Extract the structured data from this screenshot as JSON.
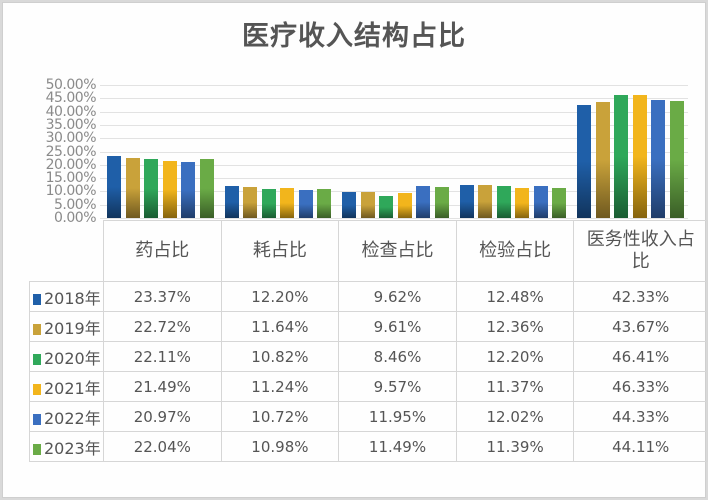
{
  "title": "医疗收入结构占比",
  "colors": {
    "2018年": "#1f5fa8",
    "2019年": "#c9a23a",
    "2020年": "#2fa85a",
    "2021年": "#f2b51c",
    "2022年": "#3a6fc0",
    "2023年": "#6aab46"
  },
  "y_ticks": [
    "50.00%",
    "45.00%",
    "40.00%",
    "35.00%",
    "30.00%",
    "25.00%",
    "20.00%",
    "15.00%",
    "10.00%",
    "5.00%",
    "0.00%"
  ],
  "table": {
    "headers": [
      "药占比",
      "耗占比",
      "检查占比",
      "检验占比",
      "医务性收入占比"
    ],
    "rows": [
      {
        "label": "2018年",
        "values": [
          "23.37%",
          "12.20%",
          "9.62%",
          "12.48%",
          "42.33%"
        ]
      },
      {
        "label": "2019年",
        "values": [
          "22.72%",
          "11.64%",
          "9.61%",
          "12.36%",
          "43.67%"
        ]
      },
      {
        "label": "2020年",
        "values": [
          "22.11%",
          "10.82%",
          "8.46%",
          "12.20%",
          "46.41%"
        ]
      },
      {
        "label": "2021年",
        "values": [
          "21.49%",
          "11.24%",
          "9.57%",
          "11.37%",
          "46.33%"
        ]
      },
      {
        "label": "2022年",
        "values": [
          "20.97%",
          "10.72%",
          "11.95%",
          "12.02%",
          "44.33%"
        ]
      },
      {
        "label": "2023年",
        "values": [
          "22.04%",
          "10.98%",
          "11.49%",
          "11.39%",
          "44.11%"
        ]
      }
    ]
  },
  "chart_data": {
    "type": "bar",
    "title": "医疗收入结构占比",
    "categories": [
      "药占比",
      "耗占比",
      "检查占比",
      "检验占比",
      "医务性收入占比"
    ],
    "series": [
      {
        "name": "2018年",
        "values": [
          23.37,
          12.2,
          9.62,
          12.48,
          42.33
        ]
      },
      {
        "name": "2019年",
        "values": [
          22.72,
          11.64,
          9.61,
          12.36,
          43.67
        ]
      },
      {
        "name": "2020年",
        "values": [
          22.11,
          10.82,
          8.46,
          12.2,
          46.41
        ]
      },
      {
        "name": "2021年",
        "values": [
          21.49,
          11.24,
          9.57,
          11.37,
          46.33
        ]
      },
      {
        "name": "2022年",
        "values": [
          20.97,
          10.72,
          11.95,
          12.02,
          44.33
        ]
      },
      {
        "name": "2023年",
        "values": [
          22.04,
          10.98,
          11.49,
          11.39,
          44.11
        ]
      }
    ],
    "xlabel": "",
    "ylabel": "",
    "ylim": [
      0,
      50
    ],
    "y_tick_step": 5,
    "y_unit": "%",
    "grid": true,
    "legend_position": "data-table-left"
  }
}
